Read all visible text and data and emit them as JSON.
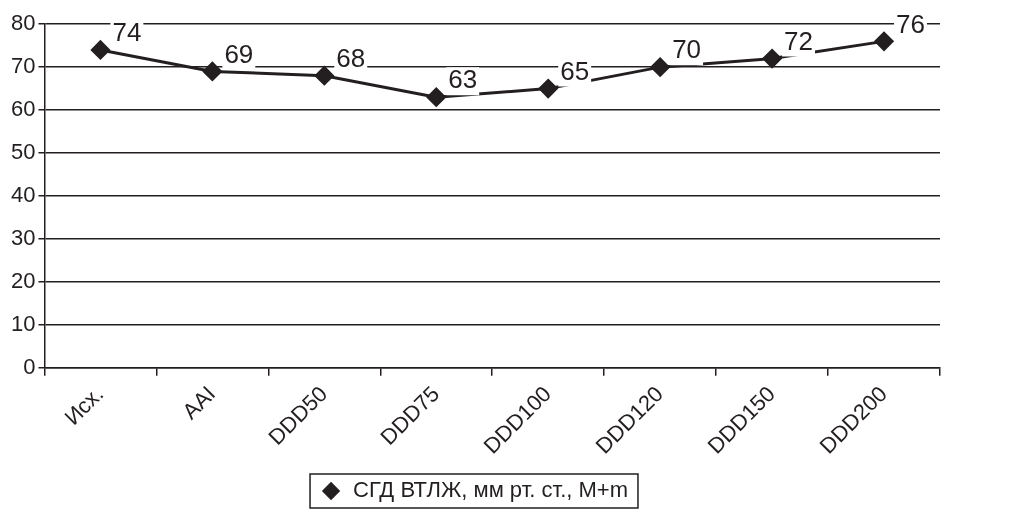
{
  "chart_data": {
    "type": "line",
    "categories": [
      "Исх.",
      "AAI",
      "DDD50",
      "DDD75",
      "DDD100",
      "DDD120",
      "DDD150",
      "DDD200"
    ],
    "series": [
      {
        "name": "СГД ВТЛЖ, мм рт. ст., M+m",
        "color": "#231f20",
        "values": [
          74,
          69,
          68,
          63,
          65,
          70,
          72,
          76
        ]
      }
    ],
    "ylim": [
      0,
      80
    ],
    "yticks": [
      0,
      10,
      20,
      30,
      40,
      50,
      60,
      70,
      80
    ],
    "grid": "y",
    "legend": "bottom",
    "marker": "diamond",
    "line_style": "solid",
    "data_labels": true
  }
}
